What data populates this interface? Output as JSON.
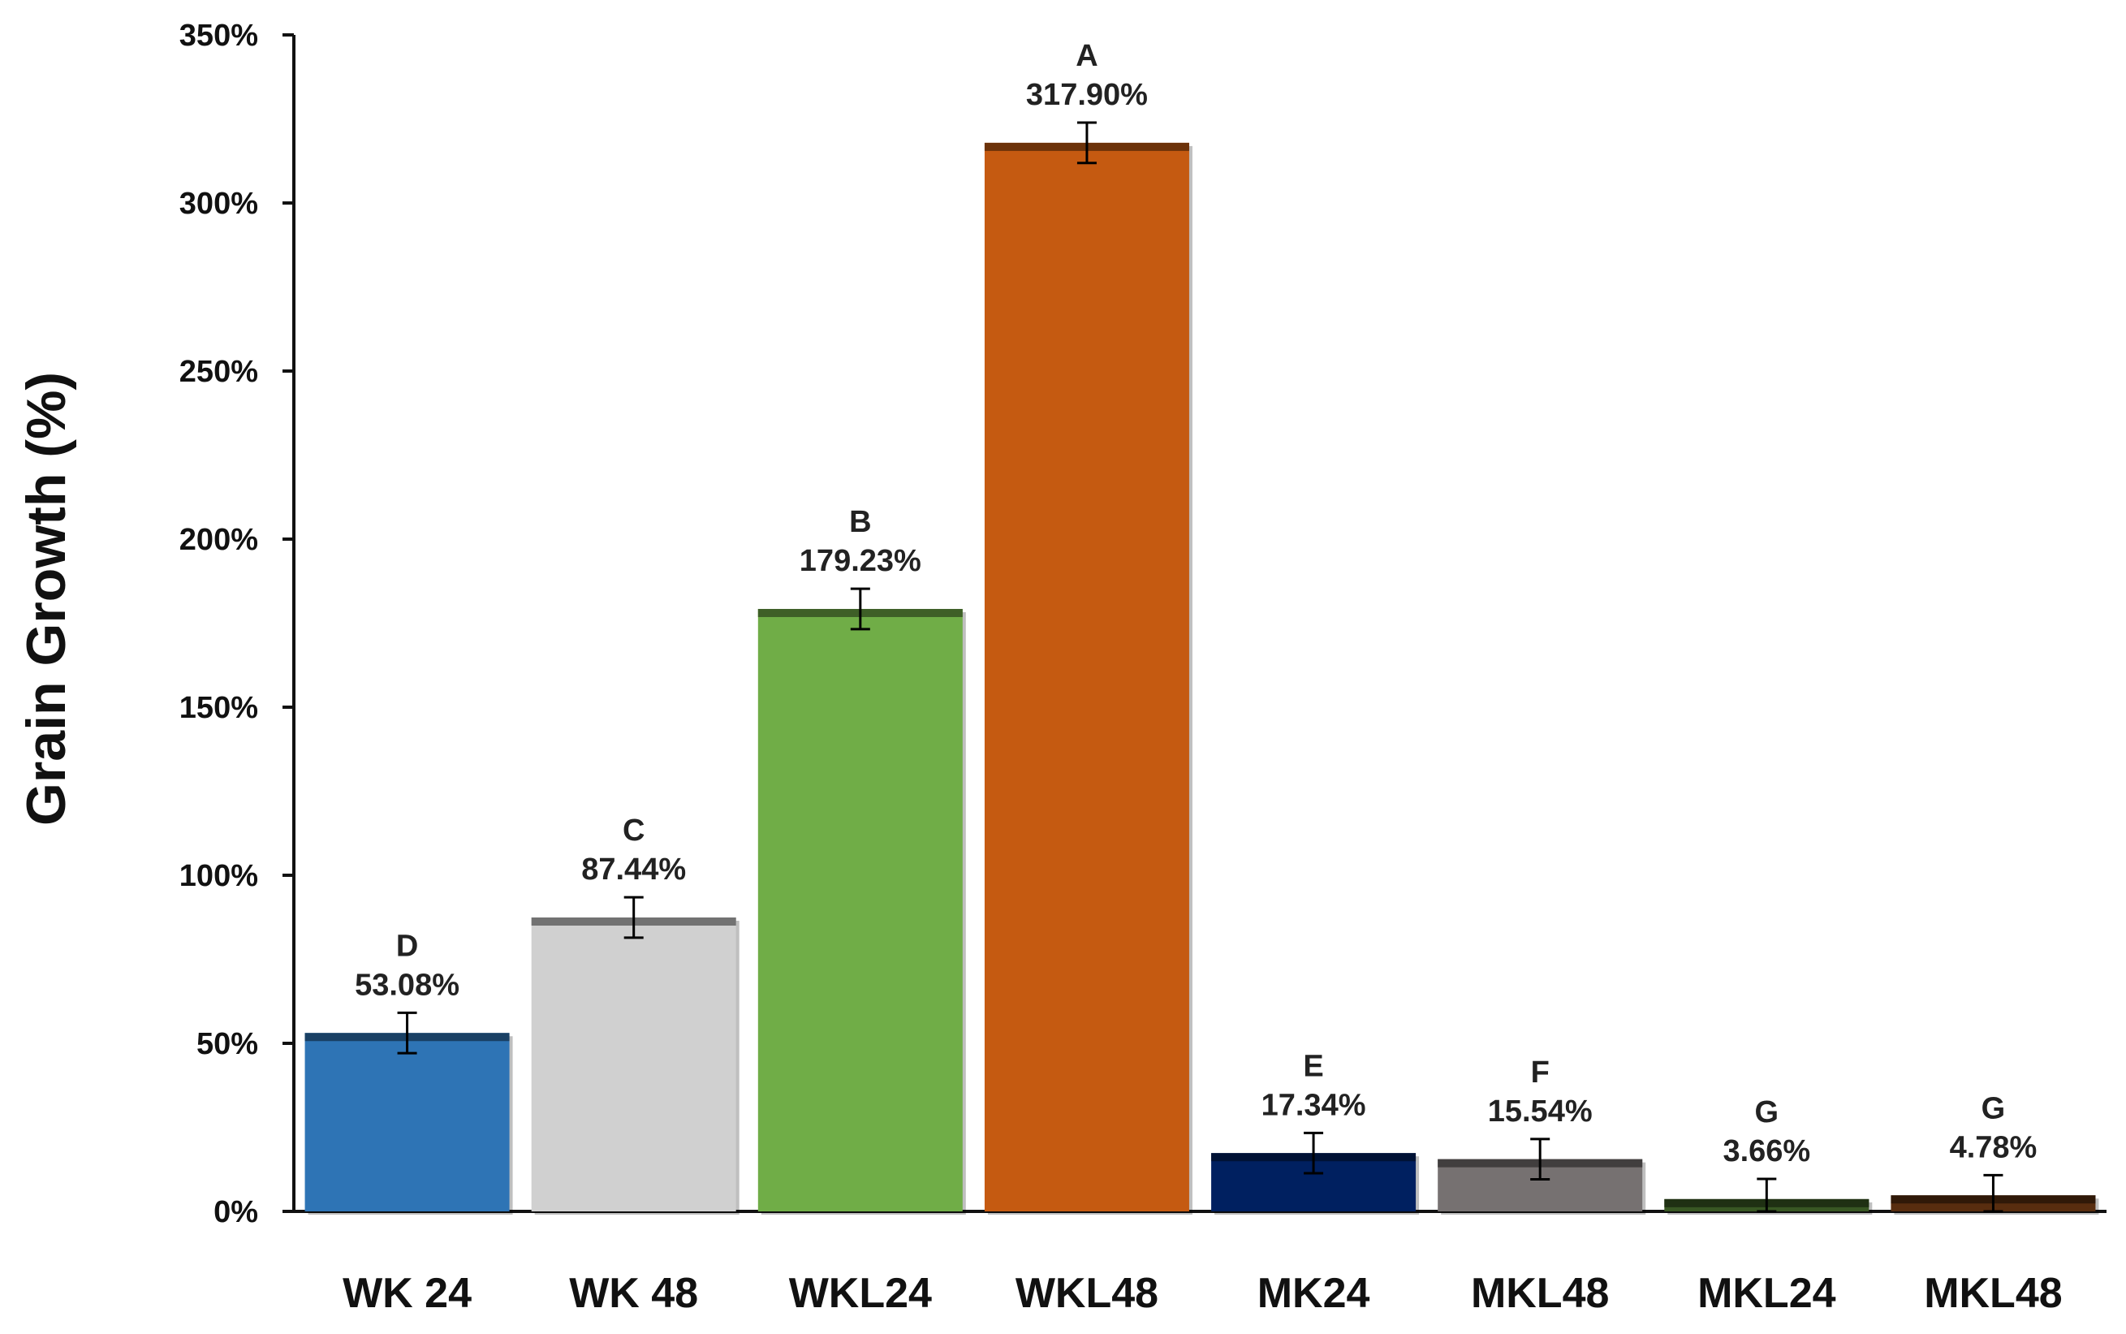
{
  "chart_data": {
    "type": "bar",
    "ylabel": "Grain Growth (%)",
    "xlabel": "",
    "ylim": [
      0,
      350
    ],
    "yticks": [
      0,
      50,
      100,
      150,
      200,
      250,
      300,
      350
    ],
    "ytick_labels": [
      "0%",
      "50%",
      "100%",
      "150%",
      "200%",
      "250%",
      "300%",
      "350%"
    ],
    "grid": false,
    "legend": "none",
    "categories": [
      "WK 24",
      "WK 48",
      "WKL24",
      "WKL48",
      "MK24",
      "MKL48",
      "MKL24",
      "MKL48"
    ],
    "values": [
      53.08,
      87.44,
      179.23,
      317.9,
      17.34,
      15.54,
      3.66,
      4.78
    ],
    "value_labels": [
      "53.08%",
      "87.44%",
      "179.23%",
      "317.90%",
      "17.34%",
      "15.54%",
      "3.66%",
      "4.78%"
    ],
    "group_letters": [
      "D",
      "C",
      "B",
      "A",
      "E",
      "F",
      "G",
      "G"
    ],
    "error": [
      6,
      6,
      6,
      6,
      6,
      6,
      6,
      6
    ],
    "colors": [
      "#2E74B5",
      "#D0D0D0",
      "#70AD47",
      "#C55A11",
      "#002060",
      "#767171",
      "#385723",
      "#582D0F"
    ]
  }
}
